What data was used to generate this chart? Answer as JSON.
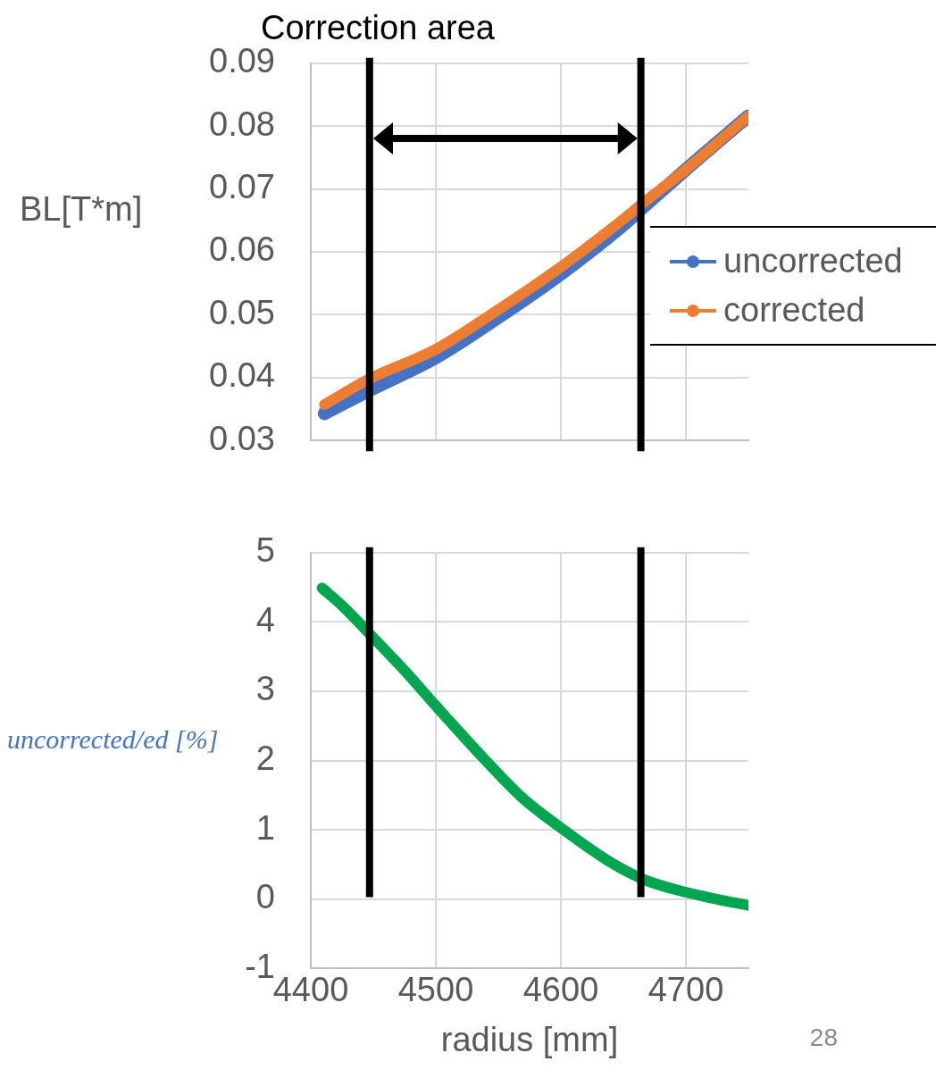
{
  "chart_data": [
    {
      "type": "line",
      "title": "Correction area",
      "ylabel": "BL[T*m]",
      "xlim": [
        4400,
        4750
      ],
      "xticks": [
        4400,
        4500,
        4600,
        4700
      ],
      "ylim": [
        0.03,
        0.09
      ],
      "yticks": [
        0.03,
        0.04,
        0.05,
        0.06,
        0.07,
        0.08,
        0.09
      ],
      "tick_labels": "y",
      "grid": true,
      "legend": "right",
      "series": [
        {
          "name": "uncorrected",
          "color": "#4472c4",
          "x": [
            4411,
            4447,
            4500,
            4550,
            4600,
            4650,
            4664,
            4700,
            4750
          ],
          "values": [
            0.0343,
            0.038,
            0.0432,
            0.0496,
            0.0565,
            0.0643,
            0.0668,
            0.0731,
            0.0816
          ]
        },
        {
          "name": "corrected",
          "color": "#ed7d31",
          "x": [
            4411,
            4447,
            4500,
            4550,
            4600,
            4650,
            4664,
            4700,
            4750
          ],
          "values": [
            0.0357,
            0.0398,
            0.0445,
            0.0508,
            0.0576,
            0.0652,
            0.0675,
            0.0731,
            0.0816
          ]
        }
      ],
      "ref_lines": [
        {
          "axis": "x",
          "value": 4447,
          "color": "#000000"
        },
        {
          "axis": "x",
          "value": 4664,
          "color": "#000000"
        }
      ]
    },
    {
      "type": "line",
      "xlabel": "radius [mm]",
      "ylabel": "uncorrected/ed [%]",
      "xlim": [
        4400,
        4750
      ],
      "xticks": [
        4400,
        4500,
        4600,
        4700
      ],
      "ylim": [
        -1,
        5
      ],
      "yticks": [
        -1,
        0,
        1,
        2,
        3,
        4,
        5
      ],
      "grid": true,
      "series": [
        {
          "color": "#00a650",
          "x": [
            4409,
            4426,
            4448,
            4475,
            4500,
            4541,
            4570,
            4600,
            4640,
            4667,
            4700,
            4725,
            4750
          ],
          "values": [
            4.49,
            4.22,
            3.81,
            3.3,
            2.79,
            1.98,
            1.45,
            1.03,
            0.53,
            0.28,
            0.1,
            0.0,
            -0.09
          ]
        }
      ],
      "ref_lines": [
        {
          "axis": "x",
          "value": 4447,
          "color": "#000000"
        },
        {
          "axis": "x",
          "value": 4664,
          "color": "#000000"
        }
      ],
      "annotations": [
        "28"
      ]
    }
  ]
}
